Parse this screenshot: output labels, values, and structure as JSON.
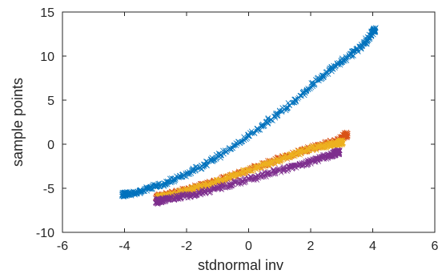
{
  "chart_data": {
    "type": "scatter",
    "title": "",
    "xlabel": "stdnormal  inv",
    "ylabel": "sample points",
    "xlim": [
      -6,
      6
    ],
    "ylim": [
      -10,
      15
    ],
    "xticks": [
      "-6",
      "-4",
      "-2",
      "0",
      "2",
      "4",
      "6"
    ],
    "yticks": [
      "-10",
      "-5",
      "0",
      "5",
      "10",
      "15"
    ],
    "grid": false,
    "legend": "none",
    "marker": "x",
    "series": [
      {
        "color": "#0072BD",
        "points": [
          [
            -4.05,
            -5.7
          ],
          [
            -3.8,
            -5.6
          ],
          [
            -3.5,
            -5.4
          ],
          [
            -3.2,
            -5.0
          ],
          [
            -3.0,
            -4.8
          ],
          [
            -2.7,
            -4.5
          ],
          [
            -2.4,
            -4.0
          ],
          [
            -2.1,
            -3.5
          ],
          [
            -1.8,
            -3.0
          ],
          [
            -1.5,
            -2.5
          ],
          [
            -1.2,
            -1.8
          ],
          [
            -0.9,
            -1.2
          ],
          [
            -0.6,
            -0.5
          ],
          [
            -0.3,
            0.2
          ],
          [
            0.0,
            1.0
          ],
          [
            0.3,
            1.7
          ],
          [
            0.6,
            2.5
          ],
          [
            0.9,
            3.3
          ],
          [
            1.2,
            4.1
          ],
          [
            1.5,
            5.0
          ],
          [
            1.8,
            5.9
          ],
          [
            2.1,
            6.8
          ],
          [
            2.4,
            7.7
          ],
          [
            2.7,
            8.6
          ],
          [
            3.0,
            9.4
          ],
          [
            3.3,
            10.2
          ],
          [
            3.6,
            11.0
          ],
          [
            3.8,
            11.7
          ],
          [
            4.05,
            13.0
          ]
        ]
      },
      {
        "color": "#D95319",
        "points": [
          [
            -2.95,
            -6.0
          ],
          [
            -2.6,
            -5.7
          ],
          [
            -2.2,
            -5.4
          ],
          [
            -1.8,
            -5.0
          ],
          [
            -1.4,
            -4.6
          ],
          [
            -1.0,
            -4.2
          ],
          [
            -0.6,
            -3.7
          ],
          [
            -0.2,
            -3.2
          ],
          [
            0.2,
            -2.7
          ],
          [
            0.6,
            -2.2
          ],
          [
            1.0,
            -1.7
          ],
          [
            1.4,
            -1.2
          ],
          [
            1.8,
            -0.7
          ],
          [
            2.2,
            -0.3
          ],
          [
            2.6,
            0.1
          ],
          [
            2.9,
            0.4
          ],
          [
            3.15,
            1.1
          ]
        ]
      },
      {
        "color": "#EDB120",
        "points": [
          [
            -2.9,
            -6.1
          ],
          [
            -2.5,
            -5.8
          ],
          [
            -2.1,
            -5.4
          ],
          [
            -1.7,
            -5.0
          ],
          [
            -1.3,
            -4.6
          ],
          [
            -0.9,
            -4.1
          ],
          [
            -0.5,
            -3.6
          ],
          [
            -0.1,
            -3.1
          ],
          [
            0.3,
            -2.6
          ],
          [
            0.7,
            -2.1
          ],
          [
            1.1,
            -1.6
          ],
          [
            1.5,
            -1.1
          ],
          [
            1.9,
            -0.6
          ],
          [
            2.3,
            -0.3
          ],
          [
            2.7,
            0.0
          ],
          [
            3.0,
            0.2
          ]
        ]
      },
      {
        "color": "#7E2F8E",
        "points": [
          [
            -2.95,
            -6.5
          ],
          [
            -2.6,
            -6.2
          ],
          [
            -2.2,
            -6.0
          ],
          [
            -1.8,
            -5.7
          ],
          [
            -1.4,
            -5.4
          ],
          [
            -1.0,
            -5.0
          ],
          [
            -0.6,
            -4.6
          ],
          [
            -0.2,
            -4.2
          ],
          [
            0.2,
            -3.8
          ],
          [
            0.6,
            -3.4
          ],
          [
            1.0,
            -3.0
          ],
          [
            1.4,
            -2.6
          ],
          [
            1.8,
            -2.2
          ],
          [
            2.2,
            -1.7
          ],
          [
            2.6,
            -1.3
          ],
          [
            2.9,
            -0.9
          ]
        ]
      }
    ]
  }
}
